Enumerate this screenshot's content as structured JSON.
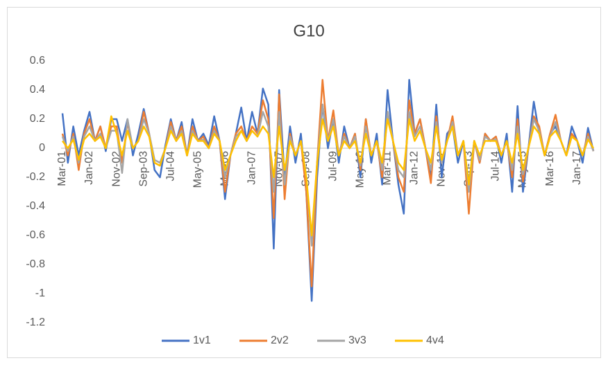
{
  "chart_data": {
    "type": "line",
    "title": "G10",
    "categories": [
      "Mar-01",
      null,
      null,
      null,
      null,
      "Jan-02",
      null,
      null,
      null,
      null,
      "Nov-02",
      null,
      null,
      null,
      null,
      "Sep-03",
      null,
      null,
      null,
      null,
      "Jul-04",
      null,
      null,
      null,
      null,
      "May-05",
      null,
      null,
      null,
      null,
      "Mar-06",
      null,
      null,
      null,
      null,
      "Jan-07",
      null,
      null,
      null,
      null,
      "Nov-07",
      null,
      null,
      null,
      null,
      "Sep-08",
      null,
      null,
      null,
      null,
      "Jul-09",
      null,
      null,
      null,
      null,
      "May-10",
      null,
      null,
      null,
      null,
      "Mar-11",
      null,
      null,
      null,
      null,
      "Jan-12",
      null,
      null,
      null,
      null,
      "Nov-12",
      null,
      null,
      null,
      null,
      "Sep-13",
      null,
      null,
      null,
      null,
      "Jul-14",
      null,
      null,
      null,
      null,
      "May-15",
      null,
      null,
      null,
      null,
      "Mar-16",
      null,
      null,
      null,
      null,
      "Jan-17",
      null,
      null,
      null
    ],
    "series": [
      {
        "name": "1v1",
        "color": "#4472c4",
        "values": [
          0.24,
          -0.1,
          0.15,
          -0.05,
          0.12,
          0.25,
          0.05,
          0.15,
          -0.02,
          0.2,
          0.2,
          0.05,
          0.2,
          -0.05,
          0.1,
          0.27,
          0.1,
          -0.15,
          -0.2,
          0.02,
          0.2,
          0.05,
          0.18,
          -0.05,
          0.2,
          0.05,
          0.1,
          0.02,
          0.22,
          0.05,
          -0.35,
          -0.05,
          0.1,
          0.28,
          0.05,
          0.25,
          0.1,
          0.41,
          0.3,
          -0.69,
          0.4,
          -0.2,
          0.15,
          -0.1,
          0.1,
          -0.3,
          -1.05,
          -0.2,
          0.3,
          0.0,
          0.2,
          -0.1,
          0.15,
          0.0,
          0.1,
          -0.2,
          0.2,
          -0.1,
          0.1,
          -0.25,
          0.4,
          0.05,
          -0.25,
          -0.45,
          0.47,
          0.1,
          0.2,
          0.0,
          -0.2,
          0.3,
          -0.2,
          0.1,
          0.15,
          -0.1,
          0.05,
          -0.25,
          0.05,
          -0.1,
          0.1,
          0.05,
          0.08,
          -0.1,
          0.1,
          -0.3,
          0.29,
          -0.3,
          0.0,
          0.32,
          0.1,
          -0.05,
          0.1,
          0.15,
          0.05,
          -0.05,
          0.15,
          0.05,
          -0.1,
          0.14,
          -0.02
        ]
      },
      {
        "name": "2v2",
        "color": "#ed7d31",
        "values": [
          0.1,
          -0.05,
          0.1,
          -0.15,
          0.1,
          0.2,
          0.05,
          0.15,
          0,
          0.15,
          0.15,
          -0.1,
          0.18,
          0,
          0.05,
          0.25,
          0.1,
          -0.1,
          -0.12,
          0,
          0.18,
          0.05,
          0.15,
          -0.05,
          0.15,
          0.05,
          0.08,
          0,
          0.15,
          0.05,
          -0.3,
          -0.05,
          0.1,
          0.15,
          0.05,
          0.15,
          0.1,
          0.33,
          0.2,
          -0.48,
          0.37,
          -0.35,
          0.1,
          -0.05,
          0.05,
          -0.3,
          -0.95,
          -0.1,
          0.47,
          0.05,
          0.26,
          -0.05,
          0.1,
          0,
          0.1,
          -0.15,
          0.2,
          -0.05,
          0.05,
          -0.2,
          0.25,
          0.05,
          -0.2,
          -0.3,
          0.33,
          0.1,
          0.2,
          0,
          -0.24,
          0.22,
          -0.1,
          0.05,
          0.22,
          -0.05,
          0.05,
          -0.45,
          0.05,
          -0.1,
          0.1,
          0.05,
          0.08,
          -0.05,
          0.05,
          -0.2,
          0.2,
          -0.23,
          0,
          0.22,
          0.15,
          -0.05,
          0.1,
          0.23,
          0.05,
          -0.05,
          0.1,
          0.05,
          -0.05,
          0.1,
          -0.02
        ]
      },
      {
        "name": "3v3",
        "color": "#a5a5a5",
        "values": [
          0.08,
          -0.02,
          0.08,
          -0.1,
          0.08,
          0.15,
          0.05,
          0.1,
          0,
          0.12,
          0.12,
          -0.17,
          0.2,
          0,
          0.05,
          0.2,
          0.1,
          -0.08,
          -0.1,
          0,
          0.15,
          0.05,
          0.12,
          -0.05,
          0.12,
          0.05,
          0.06,
          0,
          0.12,
          0.05,
          -0.2,
          -0.05,
          0.08,
          0.12,
          0.05,
          0.12,
          0.08,
          0.25,
          0.15,
          -0.3,
          0.25,
          -0.25,
          0.08,
          -0.05,
          0.05,
          -0.2,
          -0.67,
          -0.1,
          0.3,
          0.05,
          0.2,
          -0.05,
          0.08,
          0,
          0.08,
          -0.12,
          0.15,
          -0.05,
          0.05,
          -0.15,
          0.25,
          0.05,
          -0.15,
          -0.2,
          0.25,
          0.08,
          0.15,
          0,
          -0.15,
          0.18,
          -0.1,
          0.05,
          0.18,
          -0.05,
          0.05,
          -0.3,
          0.05,
          -0.08,
          0.08,
          0.05,
          0.06,
          -0.05,
          0.05,
          -0.15,
          0.15,
          -0.18,
          0,
          0.2,
          0.12,
          -0.05,
          0.08,
          0.18,
          0.05,
          -0.05,
          0.08,
          0.05,
          -0.05,
          0.08,
          -0.02
        ]
      },
      {
        "name": "4v4",
        "color": "#ffc000",
        "values": [
          0.05,
          0,
          0.06,
          -0.08,
          0.06,
          0.1,
          0.05,
          0.08,
          0,
          0.22,
          0.1,
          -0.05,
          0.12,
          0,
          0.05,
          0.15,
          0.08,
          -0.1,
          -0.12,
          0,
          0.12,
          0.05,
          0.1,
          -0.05,
          0.1,
          0.05,
          0.05,
          0,
          0.1,
          0.05,
          -0.15,
          -0.05,
          0.05,
          0.12,
          0.05,
          0.12,
          0.08,
          0.15,
          0.1,
          -0.2,
          0.15,
          -0.15,
          0.05,
          -0.05,
          0.05,
          -0.2,
          -0.6,
          -0.1,
          0.2,
          0.05,
          0.15,
          -0.05,
          0.05,
          0,
          0.05,
          -0.1,
          0.1,
          -0.05,
          0.05,
          -0.1,
          0.2,
          0.05,
          -0.1,
          -0.15,
          0.2,
          0.05,
          0.12,
          0,
          -0.1,
          0.15,
          -0.08,
          0.05,
          0.15,
          -0.05,
          0.05,
          -0.25,
          0.05,
          -0.05,
          0.05,
          0.05,
          0.05,
          -0.05,
          0.05,
          -0.1,
          0.1,
          -0.15,
          0,
          0.15,
          0.1,
          -0.05,
          0.08,
          0.12,
          0.05,
          -0.05,
          0.08,
          0.05,
          -0.05,
          0.06,
          0
        ]
      }
    ],
    "ylim": [
      -1.2,
      0.6
    ],
    "yticks": [
      -1.2,
      -1,
      -0.8,
      -0.6,
      -0.4,
      -0.2,
      0,
      0.2,
      0.4,
      0.6
    ],
    "grid": false,
    "legend": "bottom"
  }
}
